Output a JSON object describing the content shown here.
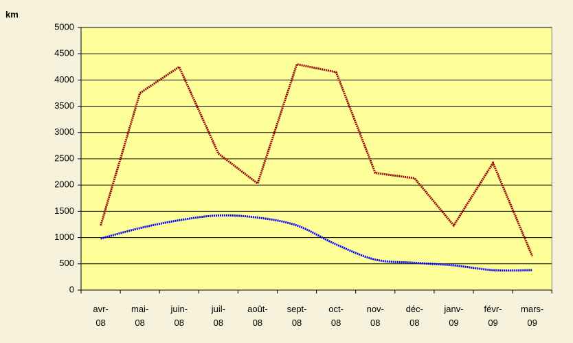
{
  "chart_data": {
    "type": "line",
    "y_unit": "km",
    "categories": [
      "avr-08",
      "mai-08",
      "juin-08",
      "juil-08",
      "août-08",
      "sept-08",
      "oct-08",
      "nov-08",
      "déc-08",
      "janv-09",
      "févr-09",
      "mars-09"
    ],
    "series": [
      {
        "color": "#990000",
        "smooth": false,
        "values": [
          1230,
          3750,
          4250,
          2600,
          2030,
          4300,
          4150,
          2230,
          2130,
          1230,
          2420,
          650
        ]
      },
      {
        "color": "#0000ff",
        "smooth": true,
        "values": [
          980,
          1180,
          1330,
          1420,
          1380,
          1230,
          870,
          580,
          520,
          470,
          380,
          380
        ]
      }
    ],
    "ylim": [
      0,
      5000
    ],
    "yticks": [
      0,
      500,
      1000,
      1500,
      2000,
      2500,
      3000,
      3500,
      4000,
      4500,
      5000
    ],
    "grid": true,
    "plot_background": "#ffff99"
  }
}
